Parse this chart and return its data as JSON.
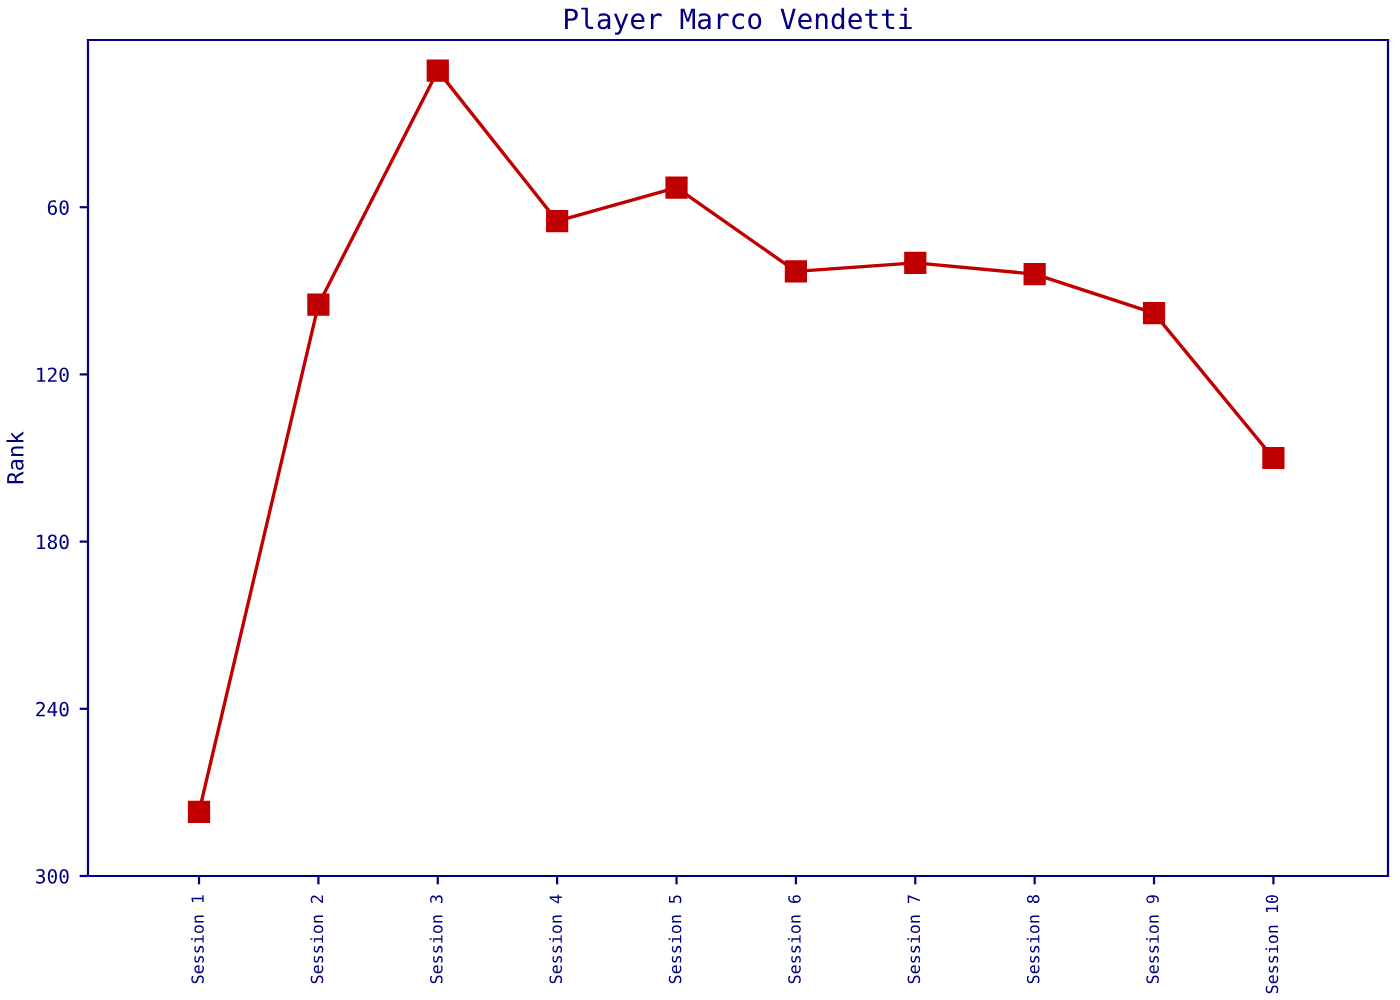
{
  "chart_data": {
    "type": "line",
    "title": "Player Marco Vendetti",
    "ylabel": "Rank",
    "categories": [
      "Session 1",
      "Session 2",
      "Session 3",
      "Session 4",
      "Session 5",
      "Session 6",
      "Session 7",
      "Session 8",
      "Session 9",
      "Session 10"
    ],
    "series": [
      {
        "color": "#c00000",
        "values": [
          277,
          95,
          11,
          65,
          53,
          83,
          80,
          84,
          98,
          150
        ]
      }
    ],
    "ylim": [
      300,
      0
    ],
    "yticks": [
      60,
      120,
      180,
      240,
      300
    ],
    "marker": "square",
    "line_style": "solid",
    "grid": false,
    "legend": false
  }
}
